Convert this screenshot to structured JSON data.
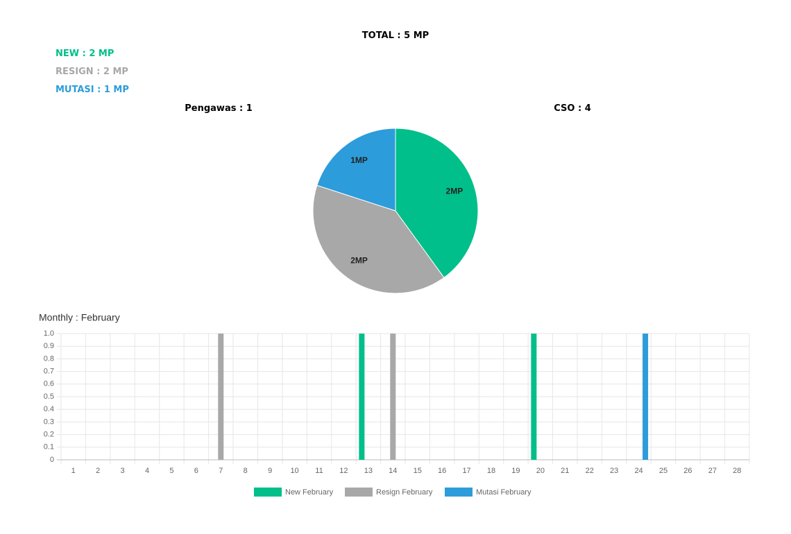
{
  "header": {
    "total": "TOTAL : 5 MP",
    "new": "NEW : 2 MP",
    "resign": "RESIGN : 2 MP",
    "mutasi": "MUTASI : 1 MP",
    "pengawas": "Pengawas : 1",
    "cso": "CSO : 4"
  },
  "chart_data": [
    {
      "type": "pie",
      "categories": [
        "New",
        "Resign",
        "Mutasi"
      ],
      "values": [
        2,
        2,
        1
      ],
      "value_labels": [
        "2MP",
        "2MP",
        "1MP"
      ],
      "colors": [
        "#00bf8a",
        "#a8a8a8",
        "#2d9cdb"
      ]
    },
    {
      "type": "bar",
      "title": "Monthly : February",
      "categories": [
        1,
        2,
        3,
        4,
        5,
        6,
        7,
        8,
        9,
        10,
        11,
        12,
        13,
        14,
        15,
        16,
        17,
        18,
        19,
        20,
        21,
        22,
        23,
        24,
        25,
        26,
        27,
        28
      ],
      "series": [
        {
          "name": "New February",
          "color": "#00bf8a",
          "values": [
            0,
            0,
            0,
            0,
            0,
            0,
            0,
            0,
            0,
            0,
            0,
            0,
            1,
            0,
            0,
            0,
            0,
            0,
            0,
            1,
            0,
            0,
            0,
            0,
            0,
            0,
            0,
            0
          ]
        },
        {
          "name": "Resign February",
          "color": "#a8a8a8",
          "values": [
            0,
            0,
            0,
            0,
            0,
            0,
            1,
            0,
            0,
            0,
            0,
            0,
            0,
            1,
            0,
            0,
            0,
            0,
            0,
            0,
            0,
            0,
            0,
            0,
            0,
            0,
            0,
            0
          ]
        },
        {
          "name": "Mutasi February",
          "color": "#2d9cdb",
          "values": [
            0,
            0,
            0,
            0,
            0,
            0,
            0,
            0,
            0,
            0,
            0,
            0,
            0,
            0,
            0,
            0,
            0,
            0,
            0,
            0,
            0,
            0,
            0,
            1,
            0,
            0,
            0,
            0
          ]
        }
      ],
      "ylim": [
        0,
        1
      ],
      "yticks": [
        0,
        0.1,
        0.2,
        0.3,
        0.4,
        0.5,
        0.6,
        0.7,
        0.8,
        0.9,
        {
          "value": 1,
          "label": "1.0"
        }
      ],
      "grid": true,
      "legend": "bottom"
    }
  ]
}
